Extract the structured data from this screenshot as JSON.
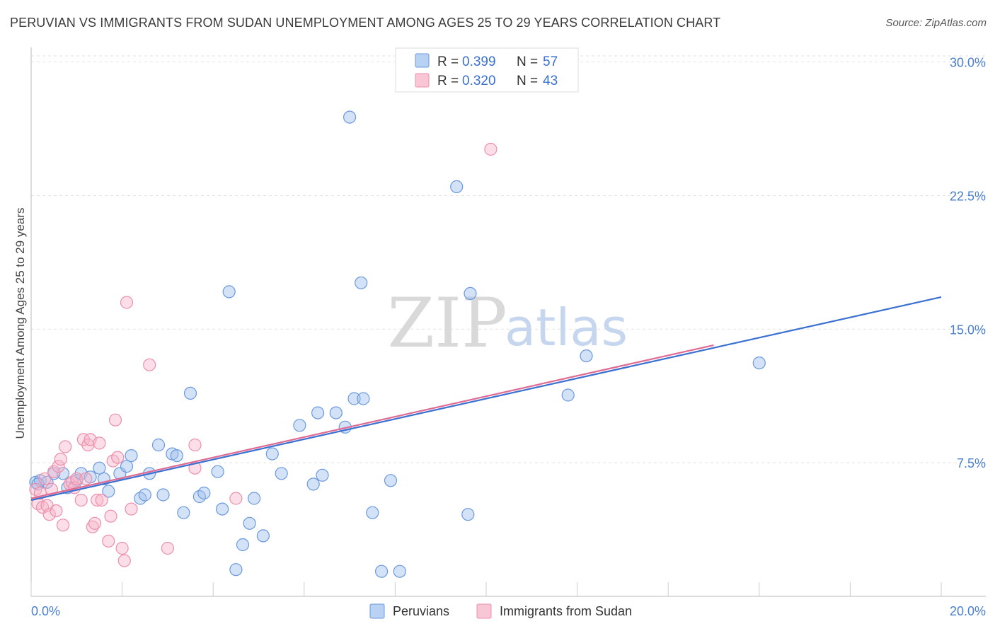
{
  "title": "PERUVIAN VS IMMIGRANTS FROM SUDAN UNEMPLOYMENT AMONG AGES 25 TO 29 YEARS CORRELATION CHART",
  "source": "Source: ZipAtlas.com",
  "watermark": {
    "zip": "ZIP",
    "atlas": "atlas"
  },
  "chart_data": {
    "type": "scatter",
    "title": "PERUVIAN VS IMMIGRANTS FROM SUDAN UNEMPLOYMENT AMONG AGES 25 TO 29 YEARS CORRELATION CHART",
    "xlabel": "",
    "ylabel": "Unemployment Among Ages 25 to 29 years",
    "xlim": [
      0,
      20
    ],
    "ylim": [
      0,
      30
    ],
    "x_tick_labels": {
      "min": "0.0%",
      "max": "20.0%"
    },
    "y_ticks": [
      7.5,
      15.0,
      22.5,
      30.0
    ],
    "y_tick_labels": [
      "7.5%",
      "15.0%",
      "22.5%",
      "30.0%"
    ],
    "grid": true,
    "legend": {
      "position": "top-center",
      "entries": [
        {
          "r_label": "R =",
          "r_value": "0.399",
          "n_label": "N =",
          "n_value": "57"
        },
        {
          "r_label": "R =",
          "r_value": "0.320",
          "n_label": "N =",
          "n_value": "43"
        }
      ]
    },
    "series": [
      {
        "name": "Peruvians",
        "color": "#9dbfee",
        "edge_color": "#6a99dc",
        "line_color": "#3a70d0",
        "trend": {
          "x0": 0.0,
          "y0": 5.4,
          "x1": 20.0,
          "y1": 16.8
        },
        "points": [
          [
            0.1,
            6.4
          ],
          [
            0.2,
            6.5
          ],
          [
            0.35,
            6.4
          ],
          [
            0.5,
            6.9
          ],
          [
            0.7,
            6.9
          ],
          [
            0.8,
            6.1
          ],
          [
            1.0,
            6.5
          ],
          [
            1.1,
            6.9
          ],
          [
            1.3,
            6.7
          ],
          [
            1.5,
            7.2
          ],
          [
            1.6,
            6.6
          ],
          [
            1.7,
            5.9
          ],
          [
            1.95,
            6.9
          ],
          [
            2.1,
            7.3
          ],
          [
            2.2,
            7.9
          ],
          [
            2.4,
            5.5
          ],
          [
            2.5,
            5.7
          ],
          [
            2.6,
            6.9
          ],
          [
            2.8,
            8.5
          ],
          [
            2.9,
            5.7
          ],
          [
            3.1,
            8.0
          ],
          [
            3.2,
            7.9
          ],
          [
            3.35,
            4.7
          ],
          [
            3.5,
            11.4
          ],
          [
            3.7,
            5.6
          ],
          [
            3.8,
            5.8
          ],
          [
            4.1,
            7.0
          ],
          [
            4.2,
            4.9
          ],
          [
            4.35,
            17.1
          ],
          [
            4.5,
            1.5
          ],
          [
            4.65,
            2.9
          ],
          [
            4.8,
            4.1
          ],
          [
            4.9,
            5.5
          ],
          [
            5.1,
            3.4
          ],
          [
            5.3,
            8.0
          ],
          [
            5.5,
            6.9
          ],
          [
            5.9,
            9.6
          ],
          [
            6.2,
            6.3
          ],
          [
            6.3,
            10.3
          ],
          [
            6.4,
            6.8
          ],
          [
            6.7,
            10.3
          ],
          [
            6.9,
            9.5
          ],
          [
            7.1,
            11.1
          ],
          [
            7.3,
            11.1
          ],
          [
            7.0,
            26.9
          ],
          [
            7.25,
            17.6
          ],
          [
            7.5,
            4.7
          ],
          [
            7.7,
            1.4
          ],
          [
            7.9,
            6.5
          ],
          [
            8.1,
            1.4
          ],
          [
            9.35,
            23.0
          ],
          [
            9.6,
            4.6
          ],
          [
            9.65,
            17.0
          ],
          [
            11.8,
            11.3
          ],
          [
            12.2,
            13.5
          ],
          [
            16.0,
            13.1
          ],
          [
            0.15,
            6.3
          ]
        ]
      },
      {
        "name": "Immigrants from Sudan",
        "color": "#f7b6c9",
        "edge_color": "#ec8fab",
        "line_color": "#e06a92",
        "trend": {
          "x0": 0.0,
          "y0": 5.5,
          "x1": 15.0,
          "y1": 14.1
        },
        "points": [
          [
            0.1,
            6.0
          ],
          [
            0.15,
            5.2
          ],
          [
            0.2,
            5.8
          ],
          [
            0.25,
            5.0
          ],
          [
            0.3,
            6.6
          ],
          [
            0.35,
            5.1
          ],
          [
            0.4,
            4.6
          ],
          [
            0.45,
            6.0
          ],
          [
            0.5,
            7.0
          ],
          [
            0.55,
            4.8
          ],
          [
            0.6,
            7.3
          ],
          [
            0.65,
            7.7
          ],
          [
            0.7,
            4.0
          ],
          [
            0.75,
            8.4
          ],
          [
            0.85,
            6.3
          ],
          [
            0.9,
            6.4
          ],
          [
            0.95,
            6.1
          ],
          [
            1.0,
            6.6
          ],
          [
            1.1,
            5.4
          ],
          [
            1.15,
            8.8
          ],
          [
            1.2,
            6.6
          ],
          [
            1.25,
            8.5
          ],
          [
            1.3,
            8.8
          ],
          [
            1.35,
            3.9
          ],
          [
            1.4,
            4.1
          ],
          [
            1.45,
            5.4
          ],
          [
            1.5,
            8.6
          ],
          [
            1.55,
            5.4
          ],
          [
            1.7,
            3.1
          ],
          [
            1.75,
            4.5
          ],
          [
            1.8,
            7.6
          ],
          [
            1.85,
            9.9
          ],
          [
            1.9,
            7.8
          ],
          [
            2.0,
            2.7
          ],
          [
            2.05,
            2.0
          ],
          [
            2.1,
            16.5
          ],
          [
            2.2,
            4.9
          ],
          [
            2.6,
            13.0
          ],
          [
            3.0,
            2.7
          ],
          [
            3.6,
            8.5
          ],
          [
            3.6,
            7.2
          ],
          [
            4.5,
            5.5
          ],
          [
            10.1,
            25.1
          ]
        ]
      }
    ]
  }
}
